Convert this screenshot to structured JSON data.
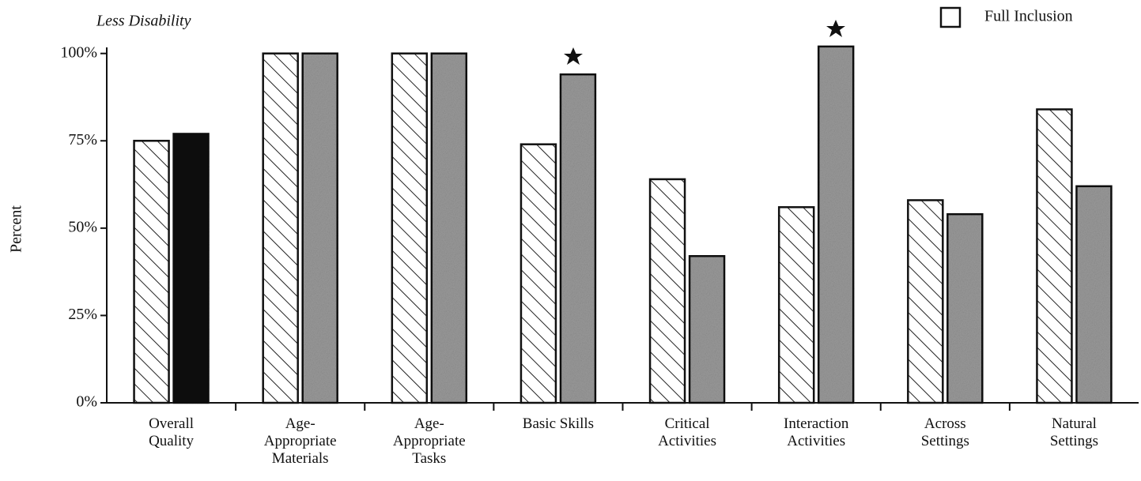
{
  "chart_data": {
    "type": "bar",
    "title": "Less Disability",
    "y_label": "Percent",
    "categories": [
      "Overall\nQuality",
      "Age-\nAppropriate\nMaterials",
      "Age-\nAppropriate\nTasks",
      "Basic Skills",
      "Critical\nActivities",
      "Interaction\nActivities",
      "Across\nSettings",
      "Natural\nSettings"
    ],
    "series": [
      {
        "color": "#ffffff",
        "hatch": true,
        "values": [
          75,
          100,
          100,
          74,
          64,
          56,
          58,
          84
        ]
      },
      {
        "name": "Full Inclusion",
        "color": "#9a9a9a",
        "colors": [
          "#111111",
          "#9a9a9a",
          "#9a9a9a",
          "#9a9a9a",
          "#9a9a9a",
          "#9a9a9a",
          "#9a9a9a",
          "#9a9a9a"
        ],
        "values": [
          77,
          100,
          100,
          94,
          42,
          102,
          54,
          62
        ]
      }
    ],
    "ylim": [
      0,
      104
    ],
    "yticks": [
      {
        "value": 0,
        "label": "0%"
      },
      {
        "value": 25,
        "label": "25%"
      },
      {
        "value": 50,
        "label": "50%"
      },
      {
        "value": 75,
        "label": "75%"
      },
      {
        "value": 100,
        "label": "100%"
      }
    ],
    "grid": false,
    "legend": "top-right"
  }
}
